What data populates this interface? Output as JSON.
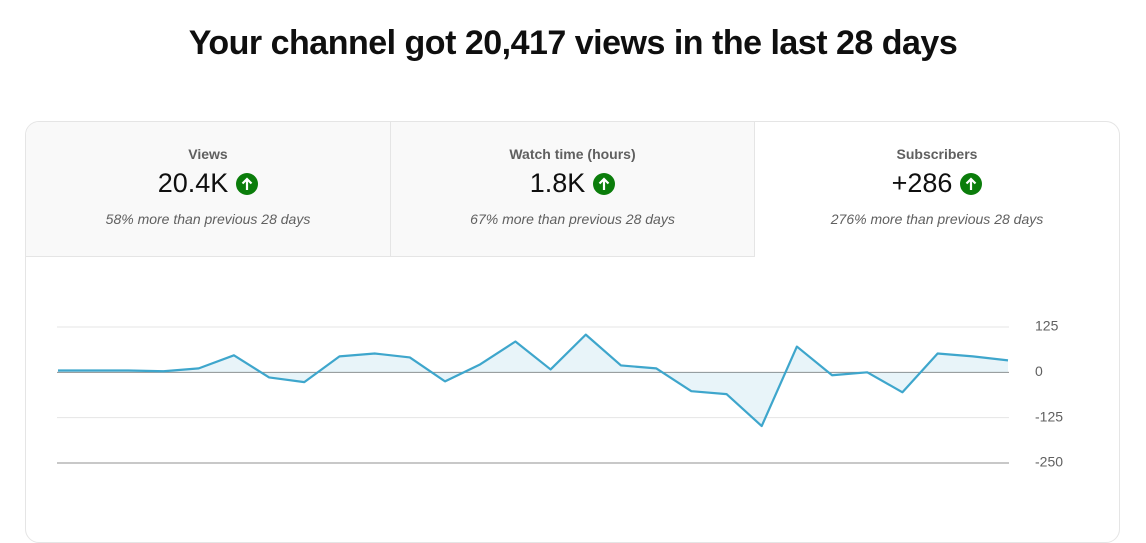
{
  "header": {
    "title": "Your channel got 20,417 views in the last 28 days"
  },
  "tabs": [
    {
      "label": "Views",
      "value": "20.4K",
      "comparison": "58% more than previous 28 days"
    },
    {
      "label": "Watch time (hours)",
      "value": "1.8K",
      "comparison": "67% more than previous 28 days"
    },
    {
      "label": "Subscribers",
      "value": "+286",
      "comparison": "276% more than previous 28 days"
    }
  ],
  "chart_data": {
    "type": "line",
    "color": "#3ea6cc",
    "values": [
      5,
      5,
      5,
      3,
      11,
      47,
      -14,
      -27,
      44,
      52,
      41,
      -25,
      22,
      85,
      8,
      104,
      19,
      11,
      -52,
      -60,
      -148,
      71,
      -8,
      0,
      -55,
      52,
      44,
      33
    ],
    "ylim": [
      -250,
      125
    ],
    "yticks": [
      125,
      0,
      -125,
      -250
    ],
    "grid": true
  }
}
